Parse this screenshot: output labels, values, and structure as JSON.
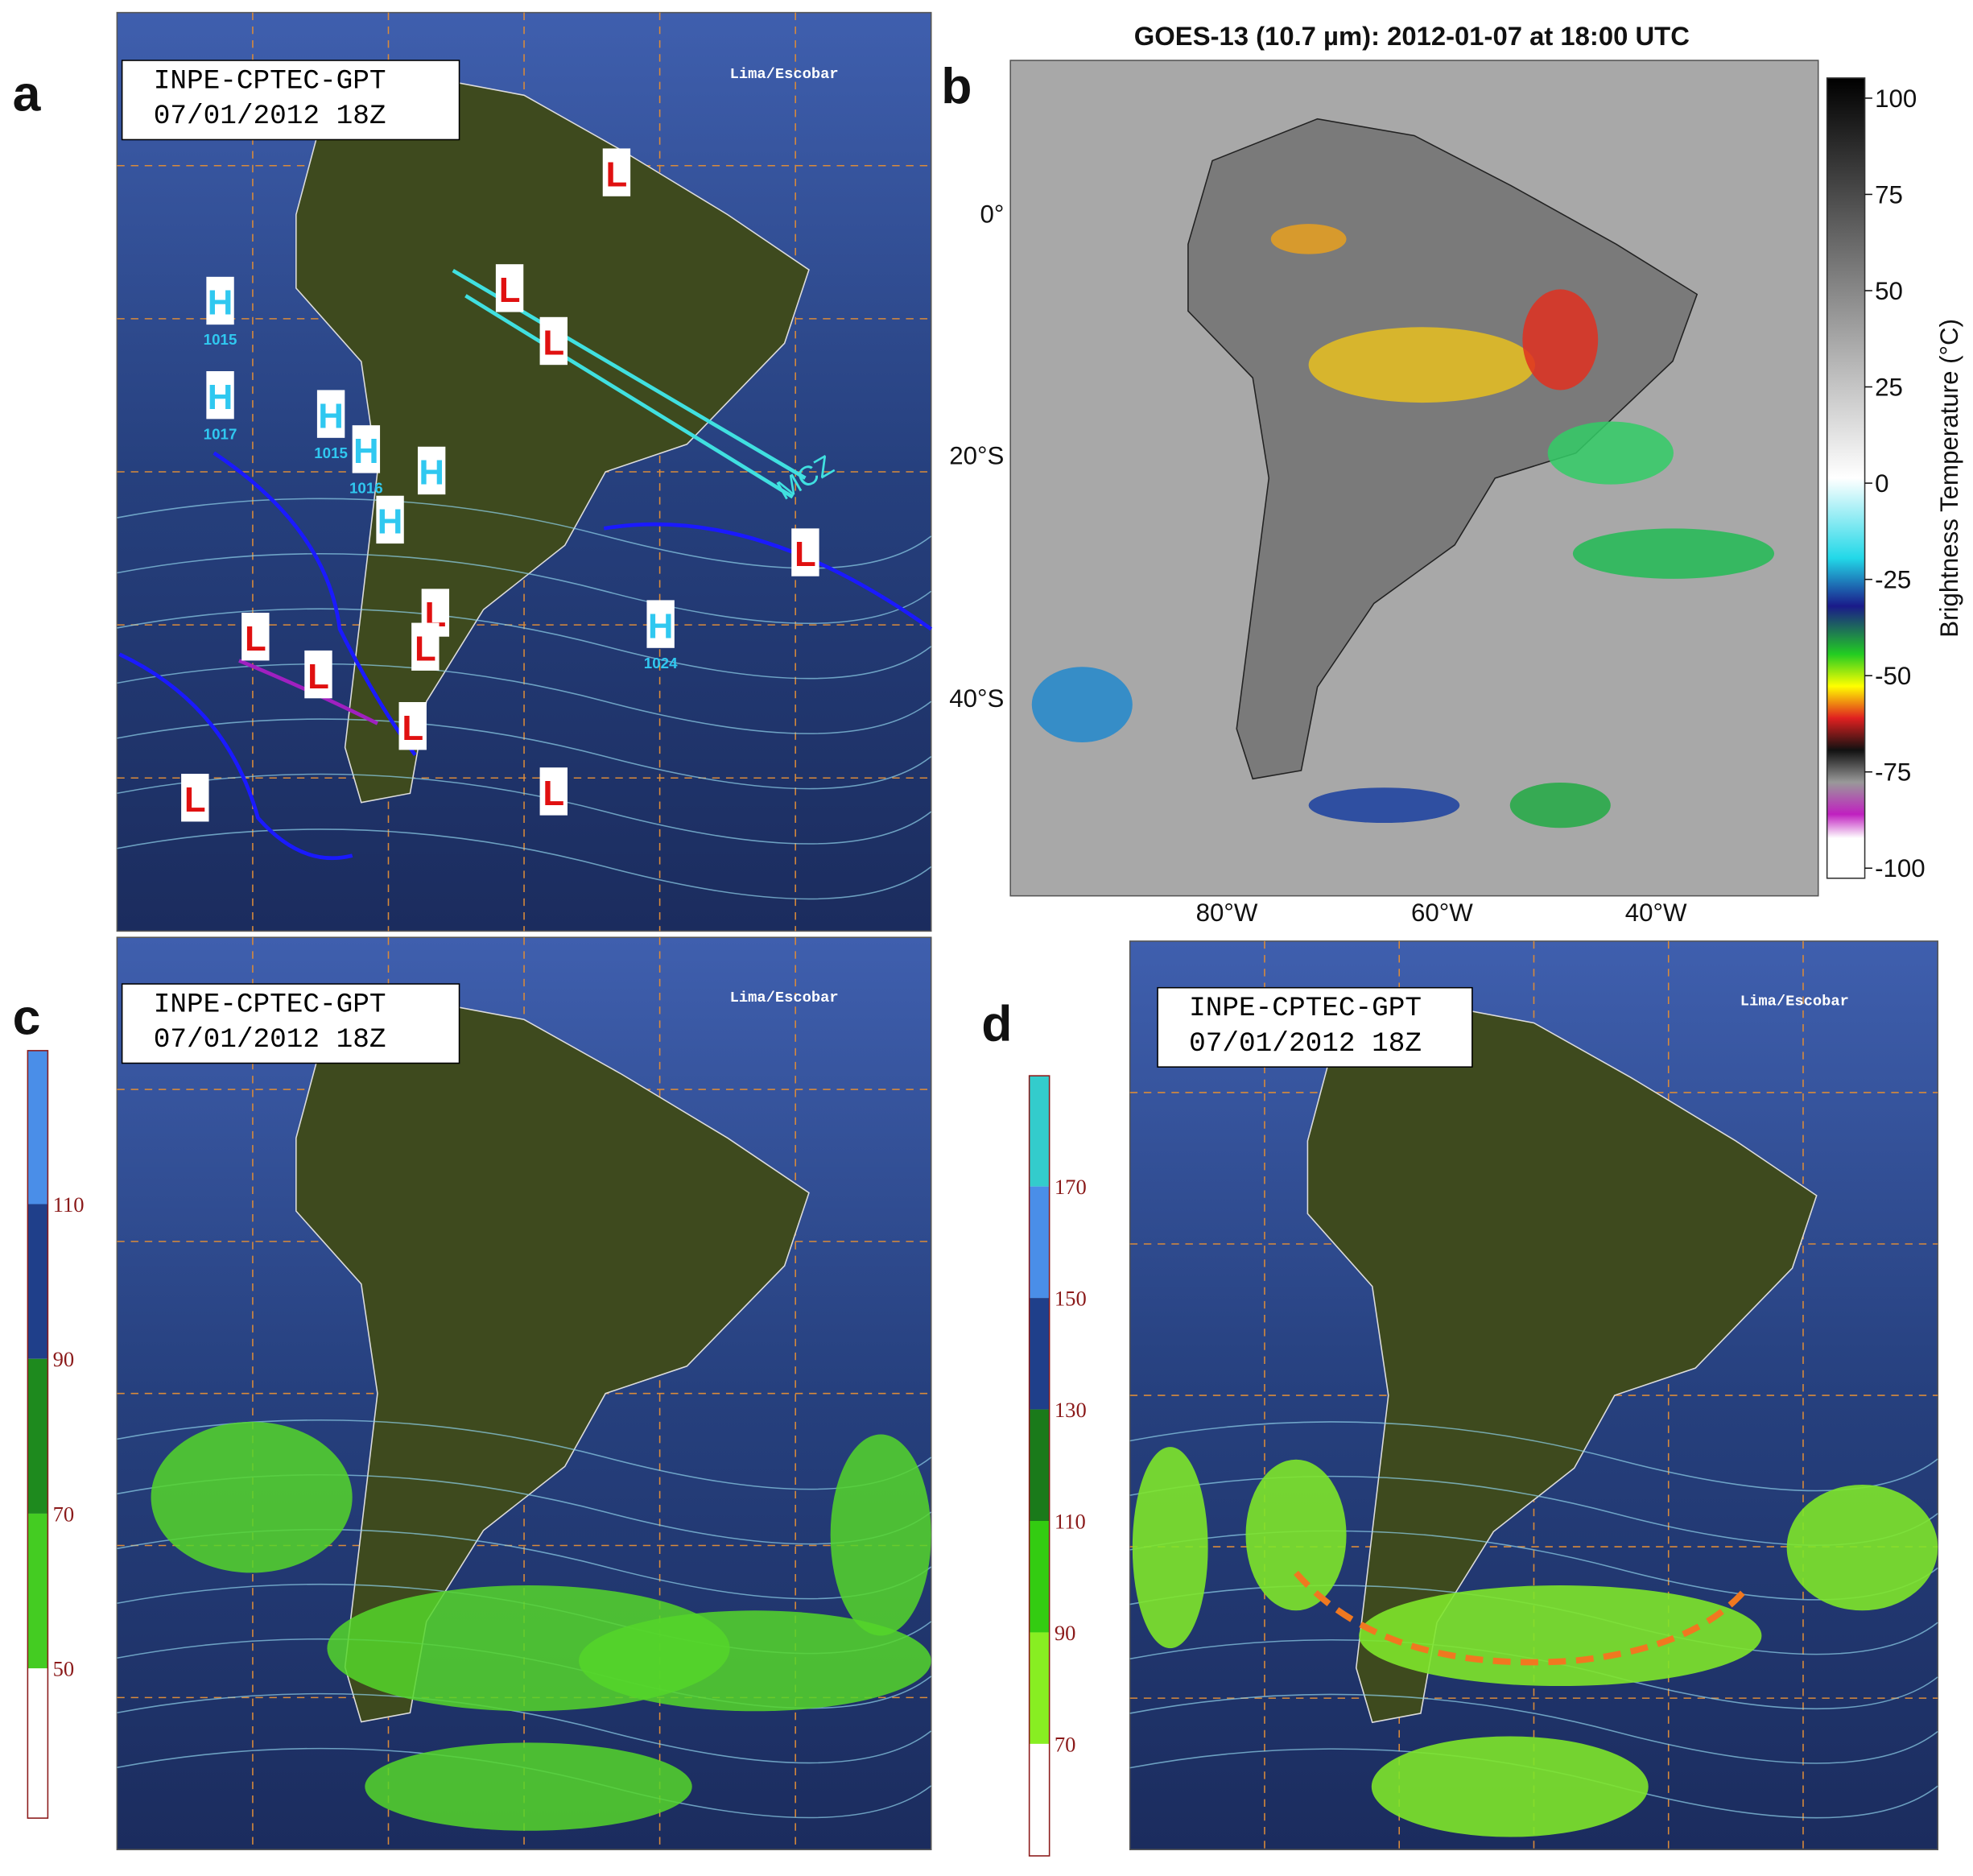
{
  "panels": [
    {
      "letter": "a",
      "stamp": [
        "INPE-CPTEC-GPT",
        "07/01/2012 18Z"
      ],
      "station": "Lima/Escobar",
      "annotation": "MCZ",
      "pressure_centers": [
        {
          "symbol": "H",
          "value": "1015"
        },
        {
          "symbol": "H",
          "value": "1017"
        },
        {
          "symbol": "H",
          "value": "1015"
        },
        {
          "symbol": "H",
          "value": "1016"
        },
        {
          "symbol": "H"
        },
        {
          "symbol": "H"
        },
        {
          "symbol": "H",
          "value": "1024"
        },
        {
          "symbol": "L"
        },
        {
          "symbol": "L"
        },
        {
          "symbol": "L"
        },
        {
          "symbol": "L"
        },
        {
          "symbol": "L"
        },
        {
          "symbol": "L"
        },
        {
          "symbol": "L"
        },
        {
          "symbol": "L"
        },
        {
          "symbol": "L"
        },
        {
          "symbol": "L"
        },
        {
          "symbol": "L"
        }
      ]
    },
    {
      "letter": "b",
      "title": "GOES-13 (10.7 µm): 2012-01-07 at 18:00 UTC",
      "y_labels": [
        "0°",
        "20°S",
        "40°S"
      ],
      "x_labels": [
        "80°W",
        "60°W",
        "40°W"
      ],
      "colorbar_label": "Brightness Temperature (°C)",
      "colorbar_ticks": [
        100,
        75,
        50,
        25,
        0,
        -25,
        -50,
        -75,
        -100
      ]
    },
    {
      "letter": "c",
      "stamp": [
        "INPE-CPTEC-GPT",
        "07/01/2012 18Z"
      ],
      "station": "Lima/Escobar",
      "colorbar_ticks": [
        110,
        90,
        70,
        50
      ]
    },
    {
      "letter": "d",
      "stamp": [
        "INPE-CPTEC-GPT",
        "07/01/2012 18Z"
      ],
      "station": "Lima/Escobar",
      "colorbar_ticks": [
        170,
        150,
        130,
        110,
        90,
        70
      ]
    }
  ]
}
